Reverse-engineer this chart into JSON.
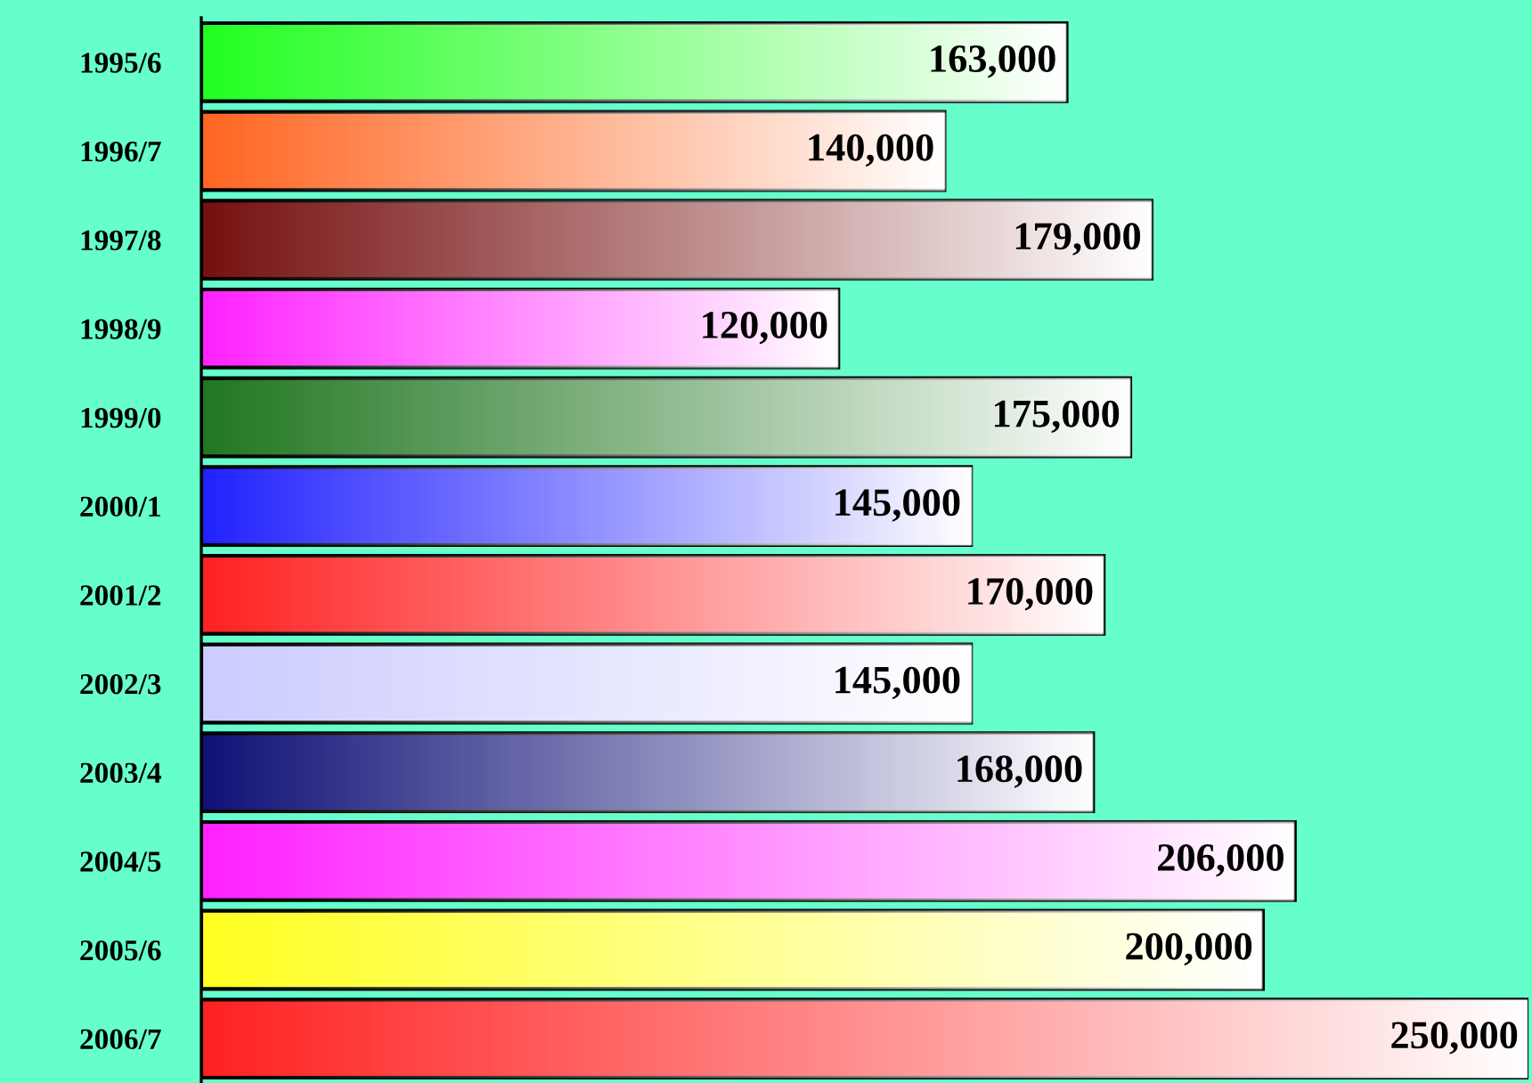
{
  "chart_data": {
    "type": "bar",
    "orientation": "horizontal",
    "categories": [
      "1995/6",
      "1996/7",
      "1997/8",
      "1998/9",
      "1999/0",
      "2000/1",
      "2001/2",
      "2002/3",
      "2003/4",
      "2004/5",
      "2005/6",
      "2006/7"
    ],
    "values": [
      163000,
      140000,
      179000,
      120000,
      175000,
      145000,
      170000,
      145000,
      168000,
      206000,
      200000,
      250000
    ],
    "colors": [
      "#22ff22",
      "#ff6622",
      "#771111",
      "#ff22ff",
      "#227722",
      "#2222ff",
      "#ff2222",
      "#ccccff",
      "#111177",
      "#ff22ff",
      "#ffff22",
      "#ff2222"
    ],
    "value_labels": [
      "163,000",
      "140,000",
      "179,000",
      "120,000",
      "175,000",
      "145,000",
      "170,000",
      "145,000",
      "168,000",
      "206,000",
      "200,000",
      "250,000"
    ],
    "xlim": [
      0,
      250000
    ],
    "tick_labels": "y",
    "grid": false,
    "legend": false
  }
}
